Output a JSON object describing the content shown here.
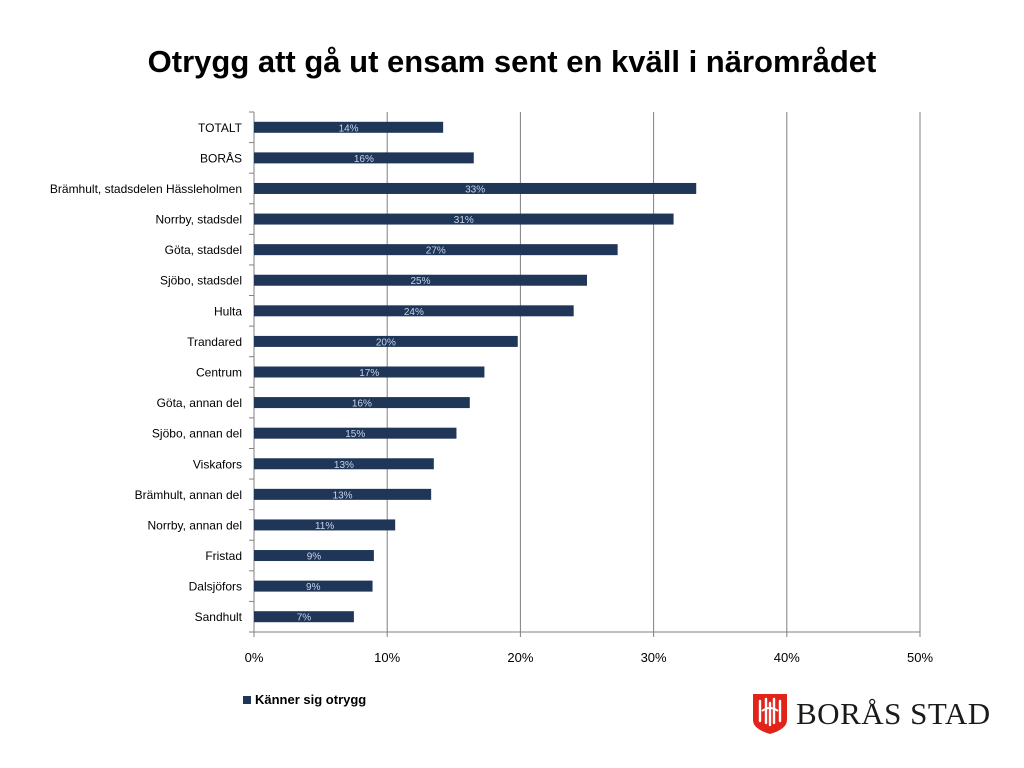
{
  "title": "Otrygg att gå ut ensam sent en kväll i närområdet",
  "chart_data": {
    "type": "bar",
    "orientation": "horizontal",
    "categories": [
      "TOTALT",
      "BORÅS",
      "Brämhult, stadsdelen Hässleholmen",
      "Norrby, stadsdel",
      "Göta, stadsdel",
      "Sjöbo, stadsdel",
      "Hulta",
      "Trandared",
      "Centrum",
      "Göta, annan del",
      "Sjöbo, annan del",
      "Viskafors",
      "Brämhult, annan del",
      "Norrby, annan del",
      "Fristad",
      "Dalsjöfors",
      "Sandhult"
    ],
    "series": [
      {
        "name": "Känner sig otrygg",
        "values": [
          14.2,
          16.5,
          33.2,
          31.5,
          27.3,
          25.0,
          24.0,
          19.8,
          17.3,
          16.2,
          15.2,
          13.5,
          13.3,
          10.6,
          9.0,
          8.9,
          7.5
        ],
        "labels": [
          "14%",
          "16%",
          "33%",
          "31%",
          "27%",
          "25%",
          "24%",
          "20%",
          "17%",
          "16%",
          "15%",
          "13%",
          "13%",
          "11%",
          "9%",
          "9%",
          "7%"
        ]
      }
    ],
    "xlim": [
      0,
      50
    ],
    "xticks": [
      "0%",
      "10%",
      "20%",
      "30%",
      "40%",
      "50%"
    ],
    "grid": true,
    "legend_position": "bottom-left",
    "colors": {
      "bar": "#1f3659",
      "grid": "#7f7f7f",
      "data_label": "#c8d3e6"
    }
  },
  "logo": {
    "text": "BORÅS STAD",
    "color": "#e2231a"
  }
}
